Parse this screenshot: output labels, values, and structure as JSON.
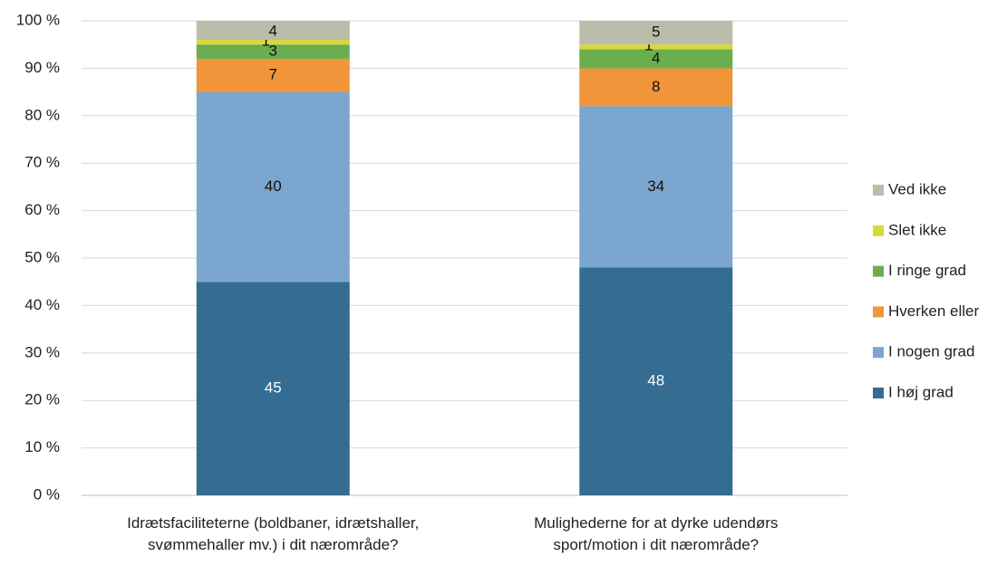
{
  "chart_data": {
    "type": "stacked_bar",
    "categories": [
      "Idrætsfaciliteterne (boldbaner, idrætshaller, svømmehaller mv.) i dit nærområde?",
      "Mulighederne for at dyrke udendørs sport/motion i dit nærområde?"
    ],
    "series": [
      {
        "name": "I høj grad",
        "color": "#356c92",
        "values": [
          45,
          48
        ]
      },
      {
        "name": "I nogen grad",
        "color": "#7aa6d0",
        "values": [
          40,
          34
        ]
      },
      {
        "name": "Hverken eller",
        "color": "#f0953a",
        "values": [
          7,
          8
        ]
      },
      {
        "name": "I ringe grad",
        "color": "#6aae4f",
        "values": [
          3,
          4
        ]
      },
      {
        "name": "Slet ikke",
        "color": "#d6d93a",
        "values": [
          1,
          1
        ]
      },
      {
        "name": "Ved ikke",
        "color": "#bbbcaa",
        "values": [
          4,
          5
        ]
      }
    ],
    "ylim": [
      0,
      100
    ],
    "yticks": [
      {
        "value": 0,
        "label": "0 %"
      },
      {
        "value": 10,
        "label": "10 %"
      },
      {
        "value": 20,
        "label": "20 %"
      },
      {
        "value": 30,
        "label": "30 %"
      },
      {
        "value": 40,
        "label": "40 %"
      },
      {
        "value": 50,
        "label": "50 %"
      },
      {
        "value": 60,
        "label": "60 %"
      },
      {
        "value": 70,
        "label": "70 %"
      },
      {
        "value": 80,
        "label": "80 %"
      },
      {
        "value": 90,
        "label": "90 %"
      },
      {
        "value": 100,
        "label": "100 %"
      }
    ],
    "grid": true,
    "legend": "right"
  }
}
